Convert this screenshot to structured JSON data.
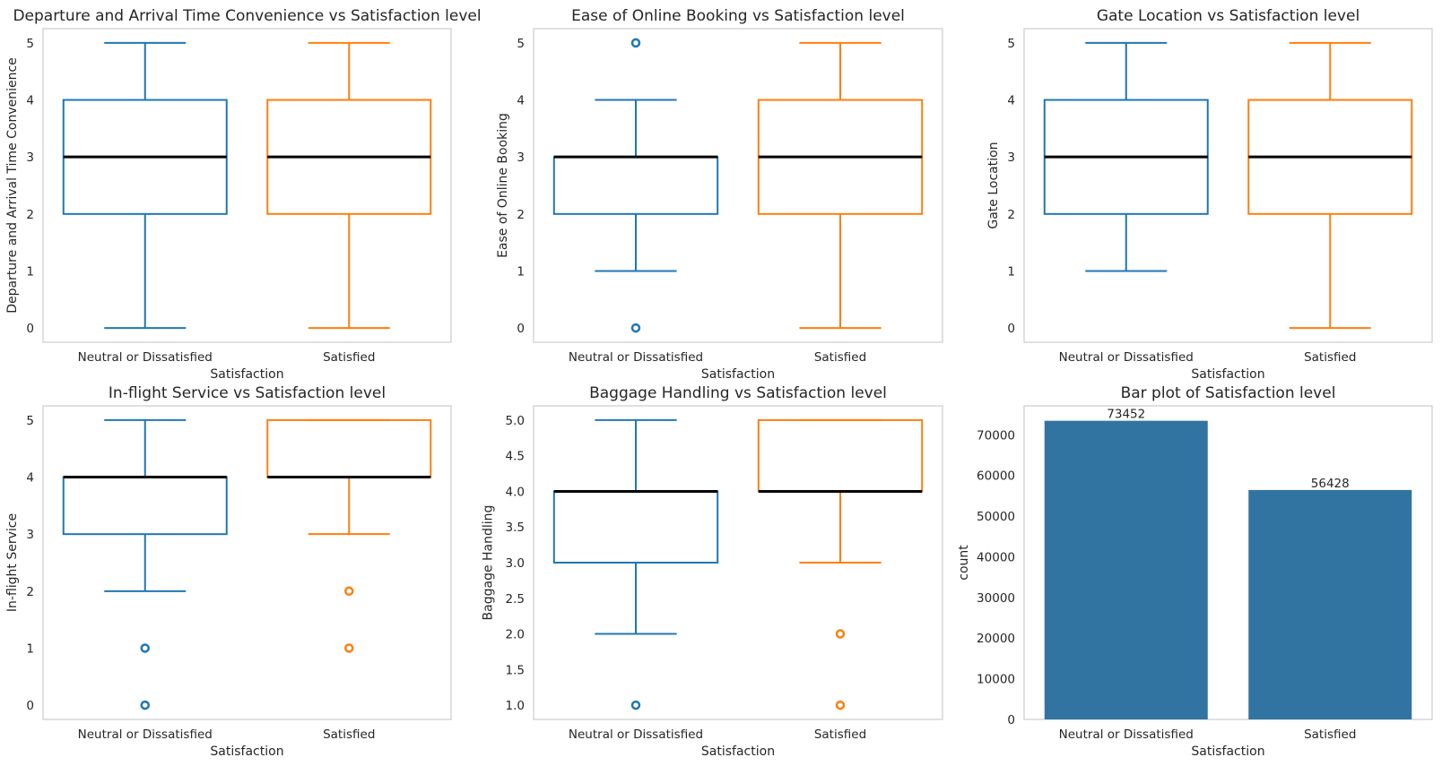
{
  "chart_data": [
    {
      "type": "boxplot",
      "title": "Departure and Arrival Time Convenience vs Satisfaction level",
      "xlabel": "Satisfaction",
      "ylabel": "Departure and Arrival Time Convenience",
      "categories": [
        "Neutral or Dissatisfied",
        "Satisfied"
      ],
      "colors": [
        "#1f77b4",
        "#ff7f0e"
      ],
      "ylim": [
        -0.25,
        5.25
      ],
      "yticks": [
        0,
        1,
        2,
        3,
        4,
        5
      ],
      "ytick_labels": [
        "0",
        "1",
        "2",
        "3",
        "4",
        "5"
      ],
      "boxes": [
        {
          "whislo": 0,
          "q1": 2,
          "med": 3,
          "q3": 4,
          "whishi": 5,
          "fliers": []
        },
        {
          "whislo": 0,
          "q1": 2,
          "med": 3,
          "q3": 4,
          "whishi": 5,
          "fliers": []
        }
      ]
    },
    {
      "type": "boxplot",
      "title": "Ease of Online Booking vs Satisfaction level",
      "xlabel": "Satisfaction",
      "ylabel": "Ease of Online Booking",
      "categories": [
        "Neutral or Dissatisfied",
        "Satisfied"
      ],
      "colors": [
        "#1f77b4",
        "#ff7f0e"
      ],
      "ylim": [
        -0.25,
        5.25
      ],
      "yticks": [
        0,
        1,
        2,
        3,
        4,
        5
      ],
      "ytick_labels": [
        "0",
        "1",
        "2",
        "3",
        "4",
        "5"
      ],
      "boxes": [
        {
          "whislo": 1,
          "q1": 2,
          "med": 3,
          "q3": 3,
          "whishi": 4,
          "fliers": [
            0,
            5
          ]
        },
        {
          "whislo": 0,
          "q1": 2,
          "med": 3,
          "q3": 4,
          "whishi": 5,
          "fliers": []
        }
      ]
    },
    {
      "type": "boxplot",
      "title": "Gate Location vs Satisfaction level",
      "xlabel": "Satisfaction",
      "ylabel": "Gate Location",
      "categories": [
        "Neutral or Dissatisfied",
        "Satisfied"
      ],
      "colors": [
        "#1f77b4",
        "#ff7f0e"
      ],
      "ylim": [
        -0.25,
        5.25
      ],
      "yticks": [
        0,
        1,
        2,
        3,
        4,
        5
      ],
      "ytick_labels": [
        "0",
        "1",
        "2",
        "3",
        "4",
        "5"
      ],
      "boxes": [
        {
          "whislo": 1,
          "q1": 2,
          "med": 3,
          "q3": 4,
          "whishi": 5,
          "fliers": []
        },
        {
          "whislo": 0,
          "q1": 2,
          "med": 3,
          "q3": 4,
          "whishi": 5,
          "fliers": []
        }
      ]
    },
    {
      "type": "boxplot",
      "title": "In-flight Service vs Satisfaction level",
      "xlabel": "Satisfaction",
      "ylabel": "In-flight Service",
      "categories": [
        "Neutral or Dissatisfied",
        "Satisfied"
      ],
      "colors": [
        "#1f77b4",
        "#ff7f0e"
      ],
      "ylim": [
        -0.25,
        5.25
      ],
      "yticks": [
        0,
        1,
        2,
        3,
        4,
        5
      ],
      "ytick_labels": [
        "0",
        "1",
        "2",
        "3",
        "4",
        "5"
      ],
      "boxes": [
        {
          "whislo": 2,
          "q1": 3,
          "med": 4,
          "q3": 4,
          "whishi": 5,
          "fliers": [
            0,
            1
          ]
        },
        {
          "whislo": 3,
          "q1": 4,
          "med": 4,
          "q3": 5,
          "whishi": 5,
          "fliers": [
            1,
            2
          ]
        }
      ]
    },
    {
      "type": "boxplot",
      "title": "Baggage Handling vs Satisfaction level",
      "xlabel": "Satisfaction",
      "ylabel": "Baggage Handling",
      "categories": [
        "Neutral or Dissatisfied",
        "Satisfied"
      ],
      "colors": [
        "#1f77b4",
        "#ff7f0e"
      ],
      "ylim": [
        0.8,
        5.2
      ],
      "yticks": [
        1.0,
        1.5,
        2.0,
        2.5,
        3.0,
        3.5,
        4.0,
        4.5,
        5.0
      ],
      "ytick_labels": [
        "1.0",
        "1.5",
        "2.0",
        "2.5",
        "3.0",
        "3.5",
        "4.0",
        "4.5",
        "5.0"
      ],
      "boxes": [
        {
          "whislo": 2,
          "q1": 3,
          "med": 4,
          "q3": 4,
          "whishi": 5,
          "fliers": [
            1
          ]
        },
        {
          "whislo": 3,
          "q1": 4,
          "med": 4,
          "q3": 5,
          "whishi": 5,
          "fliers": [
            1,
            2
          ]
        }
      ]
    },
    {
      "type": "bar",
      "title": "Bar plot of Satisfaction level",
      "xlabel": "Satisfaction",
      "ylabel": "count",
      "categories": [
        "Neutral or Dissatisfied",
        "Satisfied"
      ],
      "values": [
        73452,
        56428
      ],
      "value_labels": [
        "73452",
        "56428"
      ],
      "colors": [
        "#3274a1"
      ],
      "ylim": [
        0,
        77124.6
      ],
      "yticks": [
        0,
        10000,
        20000,
        30000,
        40000,
        50000,
        60000,
        70000
      ],
      "ytick_labels": [
        "0",
        "10000",
        "20000",
        "30000",
        "40000",
        "50000",
        "60000",
        "70000"
      ]
    }
  ]
}
